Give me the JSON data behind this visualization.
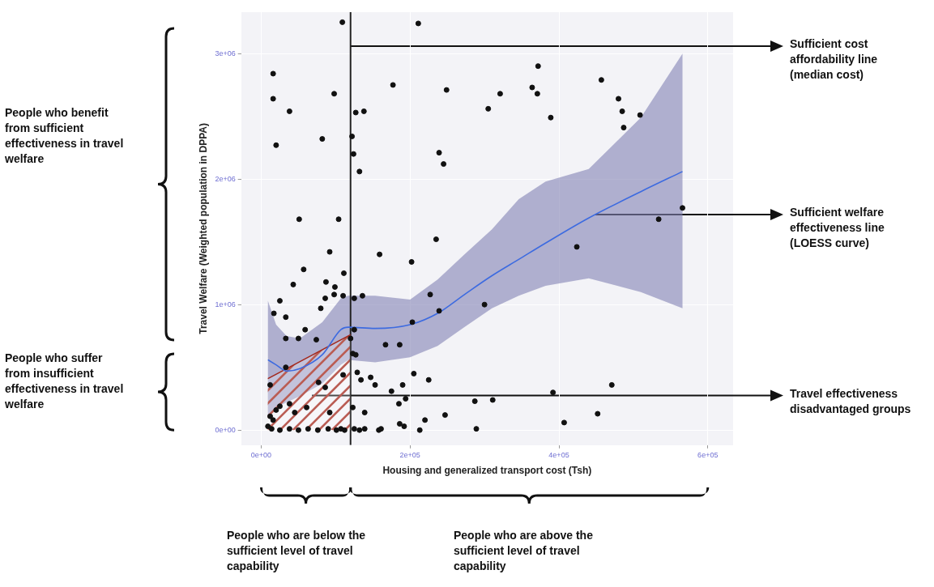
{
  "chart_data": {
    "type": "scatter",
    "xlabel": "Housing and generalized transport cost (Tsh)",
    "ylabel": "Travel Welfare (Weighted population in DPPA)",
    "xlim": [
      -27000,
      634000
    ],
    "ylim": [
      -120000,
      3330000
    ],
    "xticks": [
      {
        "value": 0,
        "label": "0e+00"
      },
      {
        "value": 200000,
        "label": "2e+05"
      },
      {
        "value": 400000,
        "label": "4e+05"
      },
      {
        "value": 600000,
        "label": "6e+05"
      }
    ],
    "yticks": [
      {
        "value": 0,
        "label": "0e+00"
      },
      {
        "value": 1000000,
        "label": "1e+06"
      },
      {
        "value": 2000000,
        "label": "2e+06"
      },
      {
        "value": 3000000,
        "label": "3e+06"
      }
    ],
    "grid": true,
    "legend": false,
    "series": [
      {
        "type": "scatter",
        "color": "#111111",
        "marker": "circle",
        "x": [
          109000,
          211000,
          16000,
          16000,
          38000,
          98000,
          20000,
          82000,
          127000,
          138000,
          122000,
          124000,
          132000,
          177000,
          249000,
          239000,
          245000,
          51000,
          104000,
          235000,
          92000,
          159000,
          372000,
          321000,
          305000,
          364000,
          371000,
          389000,
          457000,
          480000,
          485000,
          487000,
          509000,
          566000,
          534000,
          424000,
          300000,
          239000,
          471000,
          392000,
          287000,
          311000,
          247000,
          452000,
          407000,
          289000,
          202000,
          57000,
          43000,
          87000,
          111000,
          99000,
          98000,
          86000,
          110000,
          125000,
          136000,
          25000,
          80000,
          17000,
          33000,
          227000,
          203000,
          59000,
          125000,
          33000,
          50000,
          74000,
          120000,
          167000,
          186000,
          123000,
          127000,
          33000,
          110000,
          129000,
          134000,
          147000,
          153000,
          205000,
          225000,
          190000,
          12000,
          77000,
          86000,
          175000,
          194000,
          38000,
          25000,
          20000,
          185000,
          123000,
          45000,
          61000,
          92000,
          139000,
          12000,
          16000,
          220000,
          186000,
          192000,
          213000,
          9000,
          14000,
          25000,
          38000,
          50000,
          63000,
          76000,
          90000,
          101000,
          107000,
          112000,
          125000,
          132000,
          139000,
          158000,
          161000
        ],
        "values": [
          3250000,
          3240000,
          2840000,
          2640000,
          2540000,
          2680000,
          2270000,
          2320000,
          2530000,
          2540000,
          2340000,
          2200000,
          2060000,
          2750000,
          2710000,
          2210000,
          2120000,
          1680000,
          1680000,
          1520000,
          1420000,
          1400000,
          2900000,
          2680000,
          2560000,
          2730000,
          2680000,
          2490000,
          2790000,
          2640000,
          2540000,
          2410000,
          2510000,
          1770000,
          1680000,
          1460000,
          1000000,
          950000,
          360000,
          300000,
          230000,
          240000,
          120000,
          130000,
          60000,
          10000,
          1340000,
          1280000,
          1160000,
          1180000,
          1250000,
          1140000,
          1080000,
          1050000,
          1070000,
          1050000,
          1070000,
          1030000,
          970000,
          930000,
          900000,
          1080000,
          860000,
          800000,
          800000,
          730000,
          730000,
          720000,
          730000,
          680000,
          680000,
          610000,
          600000,
          500000,
          440000,
          460000,
          400000,
          420000,
          360000,
          450000,
          400000,
          360000,
          360000,
          380000,
          340000,
          310000,
          250000,
          210000,
          190000,
          160000,
          210000,
          180000,
          140000,
          180000,
          140000,
          140000,
          110000,
          80000,
          80000,
          50000,
          30000,
          0,
          30000,
          10000,
          0,
          10000,
          0,
          10000,
          0,
          10000,
          0,
          10000,
          0,
          10000,
          0,
          10000,
          0,
          10000
        ]
      },
      {
        "type": "line",
        "color": "#3d6be0",
        "x": [
          9000,
          20000,
          34000,
          52000,
          82000,
          107000,
          117000,
          153000,
          200000,
          237000,
          273000,
          310000,
          346000,
          382000,
          440000,
          510000,
          566000
        ],
        "values": [
          560000,
          520000,
          470000,
          490000,
          600000,
          800000,
          820000,
          810000,
          840000,
          930000,
          1080000,
          1230000,
          1360000,
          1490000,
          1690000,
          1900000,
          2060000
        ],
        "lower": [
          110000,
          180000,
          220000,
          270000,
          370000,
          520000,
          560000,
          540000,
          580000,
          670000,
          820000,
          970000,
          1070000,
          1150000,
          1210000,
          1100000,
          970000
        ],
        "upper": [
          1030000,
          840000,
          750000,
          730000,
          860000,
          1050000,
          1070000,
          1070000,
          1040000,
          1200000,
          1400000,
          1600000,
          1840000,
          1980000,
          2080000,
          2490000,
          3000000
        ]
      },
      {
        "type": "area",
        "color": "#a3271b",
        "x": [
          9000,
          120000
        ],
        "values": [
          410000,
          760000
        ]
      }
    ],
    "ref_lines": [
      {
        "axis": "x",
        "value": 120000,
        "label": "Sufficient cost affordability line (median cost)",
        "color": "#222222"
      }
    ],
    "annotations": [
      "People who benefit from sufficient effectiveness in travel welfare",
      "People who suffer from insufficient effectiveness in travel welfare",
      "People who are below the sufficient level of travel capability",
      "People who are above the sufficient level of travel capability",
      "Sufficient welfare effectiveness line (LOESS curve)",
      "Travel effectiveness disadvantaged groups"
    ]
  }
}
